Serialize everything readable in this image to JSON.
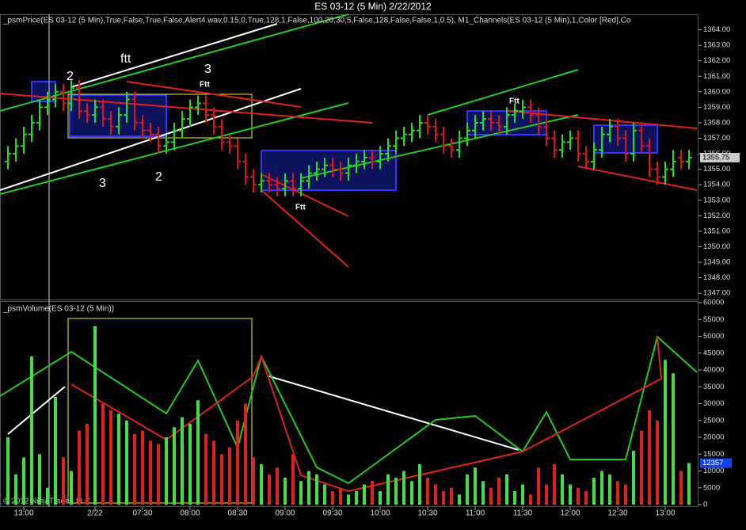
{
  "title": "ES 03-12 (5 Min)  2/22/2012",
  "copyright": "© 2012 NinjaTrader, LLC",
  "chart_data": [
    {
      "type": "ohlc",
      "label": "_psmPrice(ES 03-12 (5 Min),True,False,True,False,Alert4.wav,0.15,0,True,128,1,False,100,20,30,5,False,128,False,False,1,0.5), M1_Channels(ES 03-12 (5 Min),1,Color [Red],Co",
      "up_color": "#22dd22",
      "down_color": "#dd1515",
      "open": [
        1355.5,
        1356,
        1356.5,
        1357.25,
        1358,
        1359,
        1359.5,
        1360,
        1359.25,
        1360.25,
        1358.75,
        1358.5,
        1359,
        1358.25,
        1357.75,
        1358.5,
        1359.5,
        1358,
        1357.5,
        1357.25,
        1356.5,
        1356.75,
        1357.5,
        1358.25,
        1359,
        1359.25,
        1358.5,
        1357.75,
        1356.75,
        1356.5,
        1355.5,
        1354.5,
        1354,
        1354.25,
        1354,
        1353.75,
        1354.25,
        1353.75,
        1354.25,
        1354.75,
        1355,
        1355.25,
        1355,
        1354.75,
        1355.25,
        1355.5,
        1355.75,
        1355.5,
        1356,
        1356.5,
        1357,
        1357.25,
        1357.5,
        1358,
        1357.75,
        1357.25,
        1356.5,
        1356.25,
        1357,
        1357.5,
        1358,
        1358.25,
        1358,
        1357.75,
        1358.5,
        1358.75,
        1359,
        1358.5,
        1357.75,
        1357,
        1356.25,
        1356.75,
        1357,
        1356,
        1355.5,
        1356.25,
        1357.25,
        1357.75,
        1357,
        1356,
        1357.5,
        1356.5,
        1355,
        1354.5,
        1355,
        1355.75,
        1355.5
      ],
      "high": [
        1356.5,
        1357,
        1357.75,
        1358.5,
        1359.5,
        1360,
        1360.5,
        1360.5,
        1360.75,
        1360.75,
        1359.25,
        1359.5,
        1359.5,
        1358.75,
        1359,
        1360,
        1360,
        1358.5,
        1358,
        1357.75,
        1357.25,
        1358,
        1358.75,
        1359.5,
        1359.75,
        1359.75,
        1359,
        1358.25,
        1357.25,
        1357,
        1356,
        1355,
        1354.75,
        1354.75,
        1354.5,
        1354.75,
        1354.75,
        1354.75,
        1355.25,
        1355.5,
        1355.75,
        1355.75,
        1355.5,
        1355.75,
        1356,
        1356.25,
        1356.25,
        1356.5,
        1357,
        1357.5,
        1357.75,
        1358,
        1358.5,
        1358.5,
        1358.25,
        1357.75,
        1357,
        1357.5,
        1358,
        1358.5,
        1358.75,
        1358.75,
        1358.5,
        1359,
        1359.25,
        1359.5,
        1359.5,
        1359,
        1358.25,
        1357.5,
        1357.25,
        1357.5,
        1357.5,
        1356.5,
        1356.75,
        1357.75,
        1358.25,
        1358.25,
        1357.5,
        1358,
        1358,
        1357,
        1355.5,
        1355.5,
        1356.25,
        1356.25,
        1356.25
      ],
      "low": [
        1355,
        1355.5,
        1356,
        1356.75,
        1357.5,
        1358.5,
        1359,
        1358.75,
        1358.75,
        1358.25,
        1358,
        1358,
        1357.75,
        1357.25,
        1357.25,
        1358,
        1357.5,
        1357,
        1356.75,
        1356,
        1356,
        1356.25,
        1357,
        1357.75,
        1358.5,
        1358,
        1357.25,
        1356.25,
        1356,
        1355,
        1354,
        1353.5,
        1353.5,
        1353.5,
        1353.25,
        1353.25,
        1353.25,
        1353.25,
        1353.75,
        1354.25,
        1354.5,
        1354.5,
        1354.25,
        1354.25,
        1354.75,
        1355,
        1355,
        1355,
        1355.5,
        1356,
        1356.5,
        1356.75,
        1357,
        1357.25,
        1356.75,
        1356,
        1355.75,
        1355.75,
        1356.5,
        1357,
        1357.5,
        1357.5,
        1357.25,
        1357.25,
        1358,
        1358.25,
        1358,
        1357.25,
        1356.5,
        1355.75,
        1355.75,
        1356.25,
        1355.5,
        1355,
        1355,
        1355.75,
        1356.75,
        1356.5,
        1355.5,
        1355.5,
        1356,
        1354.5,
        1354,
        1354,
        1354.5,
        1355,
        1355
      ],
      "close": [
        1356,
        1356.5,
        1357.25,
        1358,
        1359,
        1359.5,
        1360,
        1359.25,
        1360.25,
        1358.75,
        1358.5,
        1359,
        1358.25,
        1357.75,
        1358.5,
        1359.5,
        1358,
        1357.5,
        1357.25,
        1356.5,
        1356.75,
        1357.5,
        1358.25,
        1359,
        1359.25,
        1358.5,
        1357.75,
        1356.75,
        1356.5,
        1355.5,
        1354.5,
        1354,
        1354.25,
        1354,
        1353.75,
        1354.25,
        1353.75,
        1354.25,
        1354.75,
        1355,
        1355.25,
        1355,
        1354.75,
        1355.25,
        1355.5,
        1355.75,
        1355.5,
        1356,
        1356.5,
        1357,
        1357.25,
        1357.5,
        1358,
        1357.75,
        1357.25,
        1356.5,
        1356.25,
        1357,
        1357.5,
        1358,
        1358.25,
        1358,
        1357.75,
        1358.5,
        1358.75,
        1359,
        1358.5,
        1357.75,
        1357,
        1356.25,
        1356.75,
        1357,
        1356,
        1355.5,
        1356.25,
        1357.25,
        1357.75,
        1357,
        1356,
        1357.5,
        1356.5,
        1355,
        1354.5,
        1355,
        1355.5,
        1355.5,
        1355.75
      ],
      "ylim": [
        1346.6,
        1365.0
      ],
      "yticks": [
        {
          "value": 1347,
          "label": "1347.00"
        },
        {
          "value": 1348,
          "label": "1348.00"
        },
        {
          "value": 1349,
          "label": "1349.00"
        },
        {
          "value": 1350,
          "label": "1350.00"
        },
        {
          "value": 1351,
          "label": "1351.00"
        },
        {
          "value": 1352,
          "label": "1352.00"
        },
        {
          "value": 1353,
          "label": "1353.00"
        },
        {
          "value": 1354,
          "label": "1354.00"
        },
        {
          "value": 1355,
          "label": "1355.00"
        },
        {
          "value": 1356,
          "label": "1356.00"
        },
        {
          "value": 1357,
          "label": "1357.00"
        },
        {
          "value": 1358,
          "label": "1358.00"
        },
        {
          "value": 1359,
          "label": "1359.00"
        },
        {
          "value": 1360,
          "label": "1360.00"
        },
        {
          "value": 1361,
          "label": "1361.00"
        },
        {
          "value": 1362,
          "label": "1362.00"
        },
        {
          "value": 1363,
          "label": "1363.00"
        },
        {
          "value": 1364,
          "label": "1364.00"
        }
      ],
      "last_label": "1355.75",
      "annotations": [
        "2",
        "ftt",
        "3",
        "Ftt",
        "3",
        "2",
        "Ftt",
        "Ftt"
      ]
    },
    {
      "type": "bar",
      "label": "_psmVolume(ES 03-12 (5 Min))",
      "up_color": "#44dd44",
      "down_color": "#dd2222",
      "categories": [
        null,
        null,
        "13:00",
        null,
        null,
        null,
        null,
        null,
        null,
        null,
        null,
        "2/22",
        null,
        null,
        null,
        null,
        null,
        "07:30",
        null,
        null,
        null,
        null,
        null,
        "08:00",
        null,
        null,
        null,
        null,
        null,
        "08:30",
        null,
        null,
        null,
        null,
        null,
        "09:00",
        null,
        null,
        null,
        null,
        null,
        "09:30",
        null,
        null,
        null,
        null,
        null,
        "10:00",
        null,
        null,
        null,
        null,
        null,
        "10:30",
        null,
        null,
        null,
        null,
        null,
        "11:00",
        null,
        null,
        null,
        null,
        null,
        "11:30",
        null,
        null,
        null,
        null,
        null,
        "12:00",
        null,
        null,
        null,
        null,
        null,
        "12:30",
        null,
        null,
        null,
        null,
        null,
        "13:00",
        null,
        null,
        null
      ],
      "values": [
        20000,
        9000,
        14000,
        44000,
        15000,
        5000,
        32000,
        14000,
        10000,
        22000,
        24000,
        53000,
        30000,
        28000,
        27000,
        25000,
        21000,
        22000,
        19000,
        18000,
        20000,
        23000,
        26000,
        24000,
        31000,
        21000,
        19000,
        15000,
        17000,
        25000,
        30000,
        14000,
        12000,
        9000,
        11000,
        8000,
        15000,
        7000,
        10000,
        9000,
        6000,
        4000,
        5000,
        3000,
        4000,
        6000,
        7000,
        4000,
        9000,
        8000,
        10000,
        7000,
        12000,
        8000,
        6000,
        4000,
        5000,
        3000,
        9000,
        11000,
        7000,
        5000,
        8000,
        9000,
        4000,
        6000,
        3000,
        11000,
        6000,
        12000,
        9000,
        6000,
        5000,
        4000,
        8000,
        10000,
        9000,
        7000,
        6000,
        16000,
        22000,
        28000,
        25000,
        43000,
        39000,
        10000,
        12357
      ],
      "ylim": [
        0,
        60000
      ],
      "yticks": [
        0,
        5000,
        10000,
        15000,
        20000,
        25000,
        30000,
        35000,
        40000,
        45000,
        50000,
        55000,
        60000
      ]
    }
  ]
}
